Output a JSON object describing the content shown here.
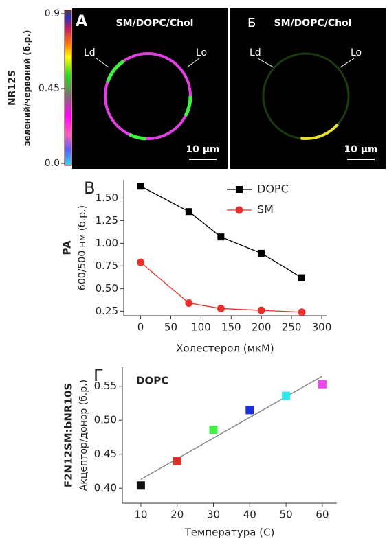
{
  "images": {
    "colorbar": {
      "title": "NR12S",
      "subtitle": "зелений/червоний (б.р.)",
      "ticks": [
        {
          "value": 0,
          "label": "0.0"
        },
        0.45,
        0.9
      ]
    },
    "panels": [
      {
        "letter": "A",
        "title": "SM/DOPC/Chol",
        "left": "Ld",
        "right": "Lo",
        "scale": "10 µm"
      },
      {
        "letter": "Б",
        "title": "SM/DOPC/Chol",
        "left": "Ld",
        "right": "Lo",
        "scale": "10 µm"
      }
    ]
  },
  "chart_data": [
    {
      "type": "line",
      "panel": "B",
      "ylabel": "PA",
      "ylabel2": "600/500 нм (б.р.)",
      "xlabel": "Холестерол (мкМ)",
      "x": [
        0,
        80,
        133,
        200,
        267
      ],
      "series": [
        {
          "name": "DOPC",
          "color": "#000000",
          "marker": "square",
          "values": [
            1.63,
            1.35,
            1.07,
            0.89,
            0.62
          ]
        },
        {
          "name": "SM",
          "color": "#e8302a",
          "marker": "circle",
          "values": [
            0.79,
            0.34,
            0.28,
            0.26,
            0.24
          ]
        }
      ],
      "xlim": [
        -28,
        308
      ],
      "ylim": [
        0.2,
        1.7
      ],
      "xticks": [
        0,
        50,
        100,
        150,
        200,
        250,
        300
      ],
      "yticks": [
        0.25,
        {
          "value": 0.5,
          "label": "0.50"
        },
        0.75,
        {
          "value": 1,
          "label": "1.00"
        },
        1.25,
        {
          "value": 1.5,
          "label": "1.50"
        }
      ],
      "legend": "upper right"
    },
    {
      "type": "scatter",
      "panel": "Г",
      "annotation": "DOPC",
      "ylabel": "F2N12SM:bNR10S",
      "ylabel2": "Акцептор/донор (б.р.)",
      "xlabel": "Температура (С)",
      "x": [
        10,
        20,
        30,
        40,
        50,
        60
      ],
      "values": [
        0.404,
        0.44,
        0.486,
        0.515,
        0.536,
        0.553
      ],
      "colors": [
        "#111111",
        "#e0302a",
        "#44ee44",
        "#1a2ee0",
        "#33e6ee",
        "#ee44ee"
      ],
      "fit": {
        "color": "#888888",
        "x": [
          10,
          60
        ],
        "y": [
          0.413,
          0.565
        ]
      },
      "xlim": [
        4.9,
        64
      ],
      "ylim": [
        0.378,
        0.578
      ],
      "xticks": [
        10,
        20,
        30,
        40,
        50,
        60
      ],
      "yticks": [
        {
          "value": 0.4,
          "label": "0.40"
        },
        0.45,
        {
          "value": 0.5,
          "label": "0.50"
        },
        0.55
      ]
    }
  ]
}
